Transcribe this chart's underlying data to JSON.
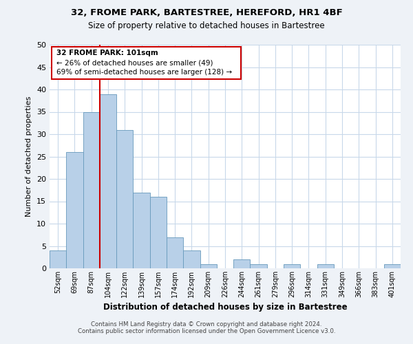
{
  "title1": "32, FROME PARK, BARTESTREE, HEREFORD, HR1 4BF",
  "title2": "Size of property relative to detached houses in Bartestree",
  "xlabel": "Distribution of detached houses by size in Bartestree",
  "ylabel": "Number of detached properties",
  "bar_labels": [
    "52sqm",
    "69sqm",
    "87sqm",
    "104sqm",
    "122sqm",
    "139sqm",
    "157sqm",
    "174sqm",
    "192sqm",
    "209sqm",
    "226sqm",
    "244sqm",
    "261sqm",
    "279sqm",
    "296sqm",
    "314sqm",
    "331sqm",
    "349sqm",
    "366sqm",
    "383sqm",
    "401sqm"
  ],
  "bar_values": [
    4,
    26,
    35,
    39,
    31,
    17,
    16,
    7,
    4,
    1,
    0,
    2,
    1,
    0,
    1,
    0,
    1,
    0,
    0,
    0,
    1
  ],
  "bar_color": "#b8d0e8",
  "bar_edge_color": "#6699bb",
  "ylim": [
    0,
    50
  ],
  "yticks": [
    0,
    5,
    10,
    15,
    20,
    25,
    30,
    35,
    40,
    45,
    50
  ],
  "vline_color": "#cc0000",
  "annotation_line1": "32 FROME PARK: 101sqm",
  "annotation_line2": "← 26% of detached houses are smaller (49)",
  "annotation_line3": "69% of semi-detached houses are larger (128) →",
  "footer1": "Contains HM Land Registry data © Crown copyright and database right 2024.",
  "footer2": "Contains public sector information licensed under the Open Government Licence v3.0.",
  "bg_color": "#eef2f7",
  "plot_bg_color": "#ffffff",
  "grid_color": "#c8d8ea"
}
